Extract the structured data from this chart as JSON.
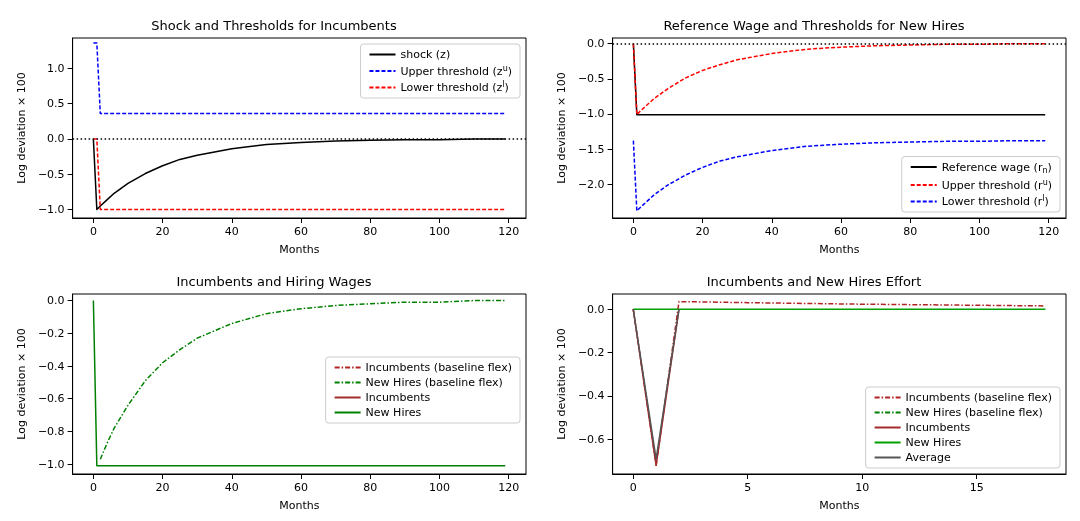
{
  "chart_data": [
    {
      "type": "line",
      "title": "Shock and Thresholds for Incumbents",
      "xlabel": "Months",
      "ylabel": "Log deviation × 100",
      "xlim": [
        -6,
        125
      ],
      "xticks": [
        0,
        20,
        40,
        60,
        80,
        100,
        120
      ],
      "ylim": [
        -1.12,
        1.43
      ],
      "yticks": [
        {
          "value": -1,
          "label": "−1.0"
        },
        {
          "value": -0.5,
          "label": "−0.5"
        },
        {
          "value": 0,
          "label": "0.0"
        },
        {
          "value": 0.5,
          "label": "0.5"
        },
        {
          "value": 1,
          "label": "1.0"
        }
      ],
      "legend": "top right",
      "marker": "none",
      "ref_lines": [
        {
          "axis": "y",
          "value": 0,
          "color": "#000000",
          "line_style": "dotted"
        }
      ],
      "series": [
        {
          "name": "shock (z)",
          "color": "#000000",
          "line_style": "solid",
          "x": [
            0,
            1,
            2,
            4,
            6,
            8,
            10,
            15,
            20,
            25,
            30,
            40,
            50,
            60,
            70,
            80,
            90,
            100,
            110,
            119
          ],
          "values": [
            0,
            -1.0,
            -0.95,
            -0.86,
            -0.77,
            -0.7,
            -0.63,
            -0.49,
            -0.38,
            -0.29,
            -0.23,
            -0.14,
            -0.08,
            -0.05,
            -0.03,
            -0.02,
            -0.01,
            -0.01,
            0,
            0
          ]
        },
        {
          "name": "Upper threshold (z$^{u}$)",
          "color": "#0000ff",
          "line_style": "dashed",
          "x": [
            0,
            1,
            2,
            119
          ],
          "values": [
            1.36,
            1.36,
            0.36,
            0.36
          ]
        },
        {
          "name": "Lower threshold (z$^{l}$)",
          "color": "#ff0000",
          "line_style": "dashed",
          "x": [
            0,
            1,
            2,
            119
          ],
          "values": [
            0,
            0,
            -1.0,
            -1.0
          ]
        }
      ]
    },
    {
      "type": "line",
      "title": "Reference Wage and Thresholds for New Hires",
      "xlabel": "Months",
      "ylabel": "Log deviation × 100",
      "xlim": [
        -6,
        125
      ],
      "xticks": [
        0,
        20,
        40,
        60,
        80,
        100,
        120
      ],
      "ylim": [
        -2.48,
        0.08
      ],
      "yticks": [
        {
          "value": -2,
          "label": "−2.0"
        },
        {
          "value": -1.5,
          "label": "−1.5"
        },
        {
          "value": -1,
          "label": "−1.0"
        },
        {
          "value": -0.5,
          "label": "−0.5"
        },
        {
          "value": 0,
          "label": "0.0"
        }
      ],
      "legend": "bottom right",
      "marker": "none",
      "ref_lines": [
        {
          "axis": "y",
          "value": 0,
          "color": "#000000",
          "line_style": "dotted"
        }
      ],
      "series": [
        {
          "name": "Reference wage (r$_{n}$)",
          "color": "#000000",
          "line_style": "solid",
          "x": [
            0,
            1,
            119
          ],
          "values": [
            0,
            -1.01,
            -1.01
          ]
        },
        {
          "name": "Upper threshold (r$^{u}$)",
          "color": "#ff0000",
          "line_style": "dashed",
          "x": [
            0,
            1,
            2,
            4,
            6,
            8,
            10,
            15,
            20,
            25,
            30,
            40,
            50,
            60,
            70,
            80,
            90,
            100,
            110,
            119
          ],
          "values": [
            0,
            -1.01,
            -0.96,
            -0.87,
            -0.78,
            -0.71,
            -0.64,
            -0.49,
            -0.38,
            -0.3,
            -0.23,
            -0.14,
            -0.08,
            -0.05,
            -0.03,
            -0.02,
            -0.01,
            -0.01,
            0,
            0
          ]
        },
        {
          "name": "Lower threshold (r$^{l}$)",
          "color": "#0000ff",
          "line_style": "dashed",
          "x": [
            0,
            1,
            2,
            4,
            6,
            8,
            10,
            15,
            20,
            25,
            30,
            40,
            50,
            60,
            70,
            80,
            90,
            100,
            110,
            119
          ],
          "values": [
            -1.38,
            -2.38,
            -2.33,
            -2.24,
            -2.15,
            -2.08,
            -2.01,
            -1.87,
            -1.76,
            -1.67,
            -1.61,
            -1.52,
            -1.46,
            -1.43,
            -1.41,
            -1.4,
            -1.39,
            -1.39,
            -1.38,
            -1.38
          ]
        }
      ]
    },
    {
      "type": "line",
      "title": "Incumbents and Hiring Wages",
      "xlabel": "Months",
      "ylabel": "Log deviation × 100",
      "xlim": [
        -6,
        125
      ],
      "xticks": [
        0,
        20,
        40,
        60,
        80,
        100,
        120
      ],
      "ylim": [
        -1.06,
        0.04
      ],
      "yticks": [
        {
          "value": -1,
          "label": "−1.0"
        },
        {
          "value": -0.8,
          "label": "−0.8"
        },
        {
          "value": -0.6,
          "label": "−0.6"
        },
        {
          "value": -0.4,
          "label": "−0.4"
        },
        {
          "value": -0.2,
          "label": "−0.2"
        },
        {
          "value": 0,
          "label": "0.0"
        }
      ],
      "legend": "right",
      "marker": "none",
      "series": [
        {
          "name": "Incumbents (baseline flex)",
          "color": "#b22222",
          "line_style": "dashdot"
        },
        {
          "name": "New Hires (baseline flex)",
          "color": "#008000",
          "line_style": "dashdot",
          "x": [
            2,
            4,
            6,
            8,
            10,
            15,
            20,
            25,
            30,
            40,
            50,
            60,
            70,
            80,
            90,
            100,
            110,
            119
          ],
          "values": [
            -0.97,
            -0.87,
            -0.78,
            -0.71,
            -0.64,
            -0.49,
            -0.38,
            -0.3,
            -0.23,
            -0.14,
            -0.08,
            -0.05,
            -0.03,
            -0.02,
            -0.01,
            -0.01,
            0,
            0
          ]
        },
        {
          "name": "Incumbents",
          "color": "#a52a2a",
          "line_style": "solid"
        },
        {
          "name": "New Hires",
          "color": "#008000",
          "line_style": "solid",
          "x": [
            0,
            1,
            119
          ],
          "values": [
            0,
            -1.01,
            -1.01
          ]
        }
      ]
    },
    {
      "type": "line",
      "title": "Incumbents and New Hires Effort",
      "xlabel": "Months",
      "ylabel": "Log deviation × 100",
      "xlim": [
        -0.9,
        18.9
      ],
      "xticks": [
        0,
        5,
        10,
        15
      ],
      "ylim": [
        -0.76,
        0.07
      ],
      "yticks": [
        {
          "value": -0.6,
          "label": "−0.6"
        },
        {
          "value": -0.4,
          "label": "−0.4"
        },
        {
          "value": -0.2,
          "label": "−0.2"
        },
        {
          "value": 0,
          "label": "0.0"
        }
      ],
      "legend": "bottom right",
      "marker": "none",
      "series": [
        {
          "name": "Incumbents (baseline flex)",
          "color": "#b22222",
          "line_style": "dashdot",
          "x": [
            0,
            1,
            2,
            5,
            10,
            15,
            18
          ],
          "values": [
            0,
            -0.72,
            0.035,
            0.03,
            0.023,
            0.018,
            0.015
          ]
        },
        {
          "name": "New Hires (baseline flex)",
          "color": "#008000",
          "line_style": "dashdot"
        },
        {
          "name": "Incumbents",
          "color": "#a52a2a",
          "line_style": "solid",
          "x": [
            0,
            1,
            2
          ],
          "values": [
            0,
            -0.72,
            0
          ]
        },
        {
          "name": "New Hires",
          "color": "#00a000",
          "line_style": "solid",
          "x": [
            0,
            18
          ],
          "values": [
            0,
            0
          ]
        },
        {
          "name": "Average",
          "color": "#555555",
          "line_style": "solid",
          "x": [
            0,
            1,
            2
          ],
          "values": [
            0,
            -0.69,
            0
          ]
        }
      ]
    }
  ]
}
